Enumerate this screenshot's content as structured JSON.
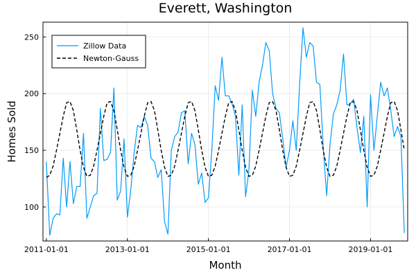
{
  "chart_data": {
    "type": "line",
    "title": "Everett, Washington",
    "xlabel": "Month",
    "ylabel": "Homes Sold",
    "xlim": [
      "2010-12-01",
      "2019-12-01"
    ],
    "ylim": [
      70,
      263
    ],
    "grid": true,
    "legend_position": "top-left",
    "xticks": [
      {
        "value": "2011-01-01",
        "label": "2011-01-01"
      },
      {
        "value": "2013-01-01",
        "label": "2013-01-01"
      },
      {
        "value": "2015-01-01",
        "label": "2015-01-01"
      },
      {
        "value": "2017-01-01",
        "label": "2017-01-01"
      },
      {
        "value": "2019-01-01",
        "label": "2019-01-01"
      }
    ],
    "yticks": [
      100,
      150,
      200,
      250
    ],
    "series": [
      {
        "name": "Zillow Data",
        "color": "#009AFA",
        "dash": "solid",
        "x": [
          "2011-01",
          "2011-02",
          "2011-03",
          "2011-04",
          "2011-05",
          "2011-06",
          "2011-07",
          "2011-08",
          "2011-09",
          "2011-10",
          "2011-11",
          "2011-12",
          "2012-01",
          "2012-02",
          "2012-03",
          "2012-04",
          "2012-05",
          "2012-06",
          "2012-07",
          "2012-08",
          "2012-09",
          "2012-10",
          "2012-11",
          "2012-12",
          "2013-01",
          "2013-02",
          "2013-03",
          "2013-04",
          "2013-05",
          "2013-06",
          "2013-07",
          "2013-08",
          "2013-09",
          "2013-10",
          "2013-11",
          "2013-12",
          "2014-01",
          "2014-02",
          "2014-03",
          "2014-04",
          "2014-05",
          "2014-06",
          "2014-07",
          "2014-08",
          "2014-09",
          "2014-10",
          "2014-11",
          "2014-12",
          "2015-01",
          "2015-02",
          "2015-03",
          "2015-04",
          "2015-05",
          "2015-06",
          "2015-07",
          "2015-08",
          "2015-09",
          "2015-10",
          "2015-11",
          "2015-12",
          "2016-01",
          "2016-02",
          "2016-03",
          "2016-04",
          "2016-05",
          "2016-06",
          "2016-07",
          "2016-08",
          "2016-09",
          "2016-10",
          "2016-11",
          "2016-12",
          "2017-01",
          "2017-02",
          "2017-03",
          "2017-04",
          "2017-05",
          "2017-06",
          "2017-07",
          "2017-08",
          "2017-09",
          "2017-10",
          "2017-11",
          "2017-12",
          "2018-01",
          "2018-02",
          "2018-03",
          "2018-04",
          "2018-05",
          "2018-06",
          "2018-07",
          "2018-08",
          "2018-09",
          "2018-10",
          "2018-11",
          "2018-12",
          "2019-01",
          "2019-02",
          "2019-03",
          "2019-04",
          "2019-05",
          "2019-06",
          "2019-07",
          "2019-08",
          "2019-09",
          "2019-10",
          "2019-11"
        ],
        "values": [
          140,
          75,
          90,
          94,
          93,
          143,
          100,
          140,
          103,
          118,
          118,
          165,
          90,
          100,
          110,
          112,
          187,
          141,
          142,
          148,
          205,
          106,
          114,
          160,
          91,
          115,
          148,
          172,
          170,
          180,
          172,
          143,
          140,
          126,
          133,
          87,
          76,
          150,
          162,
          166,
          183,
          185,
          138,
          165,
          155,
          120,
          130,
          104,
          108,
          150,
          207,
          194,
          232,
          198,
          198,
          191,
          180,
          128,
          190,
          109,
          133,
          203,
          180,
          210,
          225,
          245,
          238,
          200,
          187,
          183,
          160,
          135,
          150,
          176,
          150,
          208,
          258,
          232,
          245,
          242,
          210,
          208,
          152,
          110,
          155,
          182,
          190,
          203,
          235,
          190,
          191,
          195,
          170,
          148,
          180,
          100,
          199,
          150,
          180,
          210,
          198,
          205,
          185,
          162,
          171,
          162,
          77
        ]
      },
      {
        "name": "Newton-Gauss",
        "color": "#000000",
        "dash": "dashed",
        "x": [
          "2011-01",
          "2011-02",
          "2011-03",
          "2011-04",
          "2011-05",
          "2011-06",
          "2011-07",
          "2011-08",
          "2011-09",
          "2011-10",
          "2011-11",
          "2011-12",
          "2012-01",
          "2012-02",
          "2012-03",
          "2012-04",
          "2012-05",
          "2012-06",
          "2012-07",
          "2012-08",
          "2012-09",
          "2012-10",
          "2012-11",
          "2012-12",
          "2013-01",
          "2013-02",
          "2013-03",
          "2013-04",
          "2013-05",
          "2013-06",
          "2013-07",
          "2013-08",
          "2013-09",
          "2013-10",
          "2013-11",
          "2013-12",
          "2014-01",
          "2014-02",
          "2014-03",
          "2014-04",
          "2014-05",
          "2014-06",
          "2014-07",
          "2014-08",
          "2014-09",
          "2014-10",
          "2014-11",
          "2014-12",
          "2015-01",
          "2015-02",
          "2015-03",
          "2015-04",
          "2015-05",
          "2015-06",
          "2015-07",
          "2015-08",
          "2015-09",
          "2015-10",
          "2015-11",
          "2015-12",
          "2016-01",
          "2016-02",
          "2016-03",
          "2016-04",
          "2016-05",
          "2016-06",
          "2016-07",
          "2016-08",
          "2016-09",
          "2016-10",
          "2016-11",
          "2016-12",
          "2017-01",
          "2017-02",
          "2017-03",
          "2017-04",
          "2017-05",
          "2017-06",
          "2017-07",
          "2017-08",
          "2017-09",
          "2017-10",
          "2017-11",
          "2017-12",
          "2018-01",
          "2018-02",
          "2018-03",
          "2018-04",
          "2018-05",
          "2018-06",
          "2018-07",
          "2018-08",
          "2018-09",
          "2018-10",
          "2018-11",
          "2018-12",
          "2019-01",
          "2019-02",
          "2019-03",
          "2019-04",
          "2019-05",
          "2019-06",
          "2019-07",
          "2019-08",
          "2019-09",
          "2019-10",
          "2019-11"
        ],
        "values": [
          126,
          128,
          136,
          150,
          165,
          180,
          192,
          193,
          185,
          168,
          150,
          135,
          127,
          128,
          136,
          150,
          165,
          180,
          192,
          193,
          185,
          168,
          150,
          135,
          127,
          128,
          136,
          150,
          165,
          180,
          192,
          193,
          185,
          168,
          150,
          135,
          127,
          128,
          136,
          150,
          165,
          180,
          192,
          193,
          185,
          168,
          150,
          135,
          127,
          128,
          136,
          150,
          165,
          180,
          192,
          193,
          185,
          168,
          150,
          135,
          127,
          128,
          136,
          150,
          165,
          180,
          192,
          193,
          185,
          168,
          150,
          135,
          127,
          128,
          136,
          150,
          165,
          180,
          192,
          193,
          185,
          168,
          150,
          135,
          127,
          128,
          136,
          150,
          165,
          180,
          192,
          193,
          185,
          168,
          150,
          135,
          127,
          128,
          136,
          150,
          165,
          180,
          192,
          193,
          185,
          168,
          150
        ]
      }
    ]
  }
}
